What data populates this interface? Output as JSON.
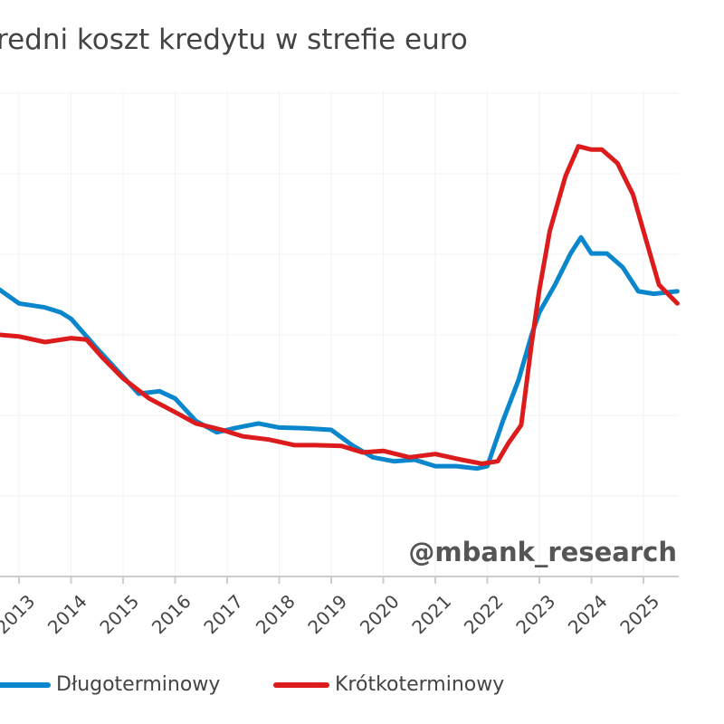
{
  "chart_data": {
    "type": "line",
    "title": "Średni koszt kredytu w strefie euro",
    "title_visible": "redni koszt kredytu w strefie euro",
    "xlabel": "",
    "ylabel": "",
    "x_ticks": [
      "2013",
      "2014",
      "2015",
      "2016",
      "2017",
      "2018",
      "2019",
      "2020",
      "2021",
      "2022",
      "2023",
      "2024",
      "2025"
    ],
    "xlim": [
      2012.63,
      2025.65
    ],
    "ylim": [
      0,
      6
    ],
    "grid": true,
    "legend_position": "bottom",
    "watermark": "@mbank_research",
    "series": [
      {
        "name": "Długoterminowy",
        "color": "#0a86cc",
        "x": [
          2012.63,
          2013.0,
          2013.5,
          2013.8,
          2014.0,
          2014.5,
          2014.9,
          2015.3,
          2015.7,
          2016.0,
          2016.4,
          2016.8,
          2017.2,
          2017.6,
          2018.0,
          2018.5,
          2019.0,
          2019.4,
          2019.8,
          2020.2,
          2020.6,
          2021.0,
          2021.4,
          2021.8,
          2022.0,
          2022.3,
          2022.6,
          2022.85,
          2023.0,
          2023.3,
          2023.6,
          2023.8,
          2024.0,
          2024.3,
          2024.6,
          2024.9,
          2025.2,
          2025.65
        ],
        "y": [
          3.56,
          3.39,
          3.34,
          3.28,
          3.2,
          2.83,
          2.55,
          2.27,
          2.3,
          2.21,
          1.93,
          1.79,
          1.85,
          1.9,
          1.85,
          1.84,
          1.82,
          1.63,
          1.48,
          1.43,
          1.45,
          1.37,
          1.37,
          1.34,
          1.37,
          1.93,
          2.44,
          3.0,
          3.28,
          3.62,
          4.01,
          4.21,
          4.01,
          4.01,
          3.84,
          3.54,
          3.51,
          3.54
        ]
      },
      {
        "name": "Krótkoterminowy",
        "color": "#dc1c1c",
        "x": [
          2012.63,
          2013.0,
          2013.5,
          2014.0,
          2014.3,
          2014.6,
          2015.0,
          2015.5,
          2016.0,
          2016.4,
          2016.9,
          2017.3,
          2017.8,
          2018.3,
          2018.7,
          2019.2,
          2019.6,
          2020.0,
          2020.5,
          2021.0,
          2021.5,
          2021.9,
          2022.2,
          2022.4,
          2022.65,
          2022.85,
          2023.0,
          2023.2,
          2023.5,
          2023.75,
          2024.0,
          2024.2,
          2024.5,
          2024.8,
          2025.0,
          2025.3,
          2025.65
        ],
        "y": [
          3.0,
          2.98,
          2.91,
          2.96,
          2.94,
          2.72,
          2.46,
          2.21,
          2.04,
          1.9,
          1.82,
          1.74,
          1.7,
          1.63,
          1.63,
          1.62,
          1.54,
          1.56,
          1.48,
          1.52,
          1.45,
          1.4,
          1.43,
          1.65,
          1.88,
          2.89,
          3.56,
          4.29,
          4.97,
          5.34,
          5.3,
          5.3,
          5.13,
          4.74,
          4.29,
          3.62,
          3.39
        ]
      }
    ]
  }
}
